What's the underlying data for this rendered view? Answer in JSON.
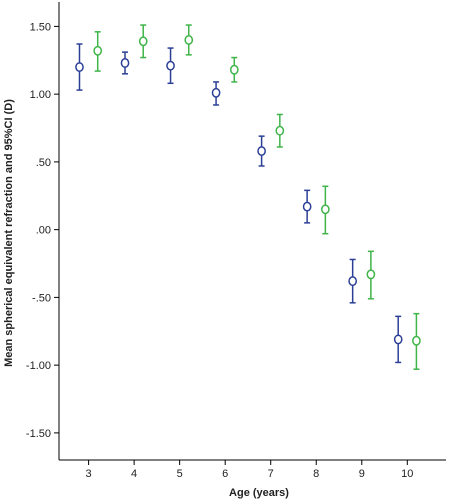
{
  "chart_data": {
    "type": "scatter",
    "subtype": "errorbar",
    "xlabel": "Age (years)",
    "ylabel": "Mean spherical equivalent refraction and 95%CI (D)",
    "x_ticks": [
      "3",
      "4",
      "5",
      "6",
      "7",
      "8",
      "9",
      "10"
    ],
    "y_ticks": [
      "1.50",
      "1.00",
      ".50",
      ".00",
      "-.50",
      "-1.00",
      "-1.50"
    ],
    "y_tick_values": [
      1.5,
      1.0,
      0.5,
      0.0,
      -0.5,
      -1.0,
      -1.5
    ],
    "xlim": [
      2.35,
      10.85
    ],
    "ylim": [
      -1.7,
      1.68
    ],
    "grid": false,
    "legend": "none",
    "marker": "open-circle",
    "series": [
      {
        "color": "#2b3f97",
        "points": [
          {
            "x": 2.8,
            "y": 1.2,
            "lo": 1.03,
            "hi": 1.37
          },
          {
            "x": 3.8,
            "y": 1.23,
            "lo": 1.15,
            "hi": 1.31
          },
          {
            "x": 4.8,
            "y": 1.21,
            "lo": 1.08,
            "hi": 1.34
          },
          {
            "x": 5.8,
            "y": 1.01,
            "lo": 0.92,
            "hi": 1.09
          },
          {
            "x": 6.8,
            "y": 0.58,
            "lo": 0.47,
            "hi": 0.69
          },
          {
            "x": 7.8,
            "y": 0.17,
            "lo": 0.05,
            "hi": 0.29
          },
          {
            "x": 8.8,
            "y": -0.38,
            "lo": -0.54,
            "hi": -0.22
          },
          {
            "x": 9.8,
            "y": -0.81,
            "lo": -0.98,
            "hi": -0.64
          }
        ]
      },
      {
        "color": "#3fb549",
        "points": [
          {
            "x": 3.2,
            "y": 1.32,
            "lo": 1.17,
            "hi": 1.46
          },
          {
            "x": 4.2,
            "y": 1.39,
            "lo": 1.27,
            "hi": 1.51
          },
          {
            "x": 5.2,
            "y": 1.4,
            "lo": 1.29,
            "hi": 1.51
          },
          {
            "x": 6.2,
            "y": 1.18,
            "lo": 1.09,
            "hi": 1.27
          },
          {
            "x": 7.2,
            "y": 0.73,
            "lo": 0.61,
            "hi": 0.85
          },
          {
            "x": 8.2,
            "y": 0.15,
            "lo": -0.03,
            "hi": 0.32
          },
          {
            "x": 9.2,
            "y": -0.33,
            "lo": -0.51,
            "hi": -0.16
          },
          {
            "x": 10.2,
            "y": -0.82,
            "lo": -1.03,
            "hi": -0.62
          }
        ]
      }
    ]
  }
}
